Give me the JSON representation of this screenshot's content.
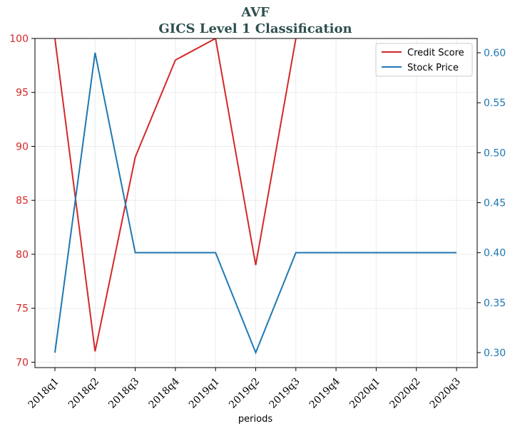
{
  "chart_data": {
    "type": "line",
    "title": "AVF",
    "subtitle": "GICS Level 1 Classification",
    "xlabel": "periods",
    "categories": [
      "2018q1",
      "2018q2",
      "2018q3",
      "2018q4",
      "2019q1",
      "2019q2",
      "2019q3",
      "2019q4",
      "2020q1",
      "2020q2",
      "2020q3"
    ],
    "series": [
      {
        "name": "Credit Score",
        "axis": "left",
        "color": "#d62728",
        "values": [
          100,
          71,
          89,
          98,
          100,
          79,
          100,
          null,
          null,
          null,
          null
        ]
      },
      {
        "name": "Stock Price",
        "axis": "right",
        "color": "#1f77b4",
        "values": [
          0.3,
          0.6,
          0.4,
          0.4,
          0.4,
          0.3,
          0.4,
          0.4,
          0.4,
          0.4,
          0.4
        ]
      }
    ],
    "y_left": {
      "lim": [
        69.5,
        100
      ],
      "ticks": [
        70,
        75,
        80,
        85,
        90,
        95,
        100
      ],
      "tick_labels": [
        "70",
        "75",
        "80",
        "85",
        "90",
        "95",
        "100"
      ],
      "color": "#d62728"
    },
    "y_right": {
      "lim": [
        0.285,
        0.6143
      ],
      "ticks": [
        0.3,
        0.35,
        0.4,
        0.45,
        0.5,
        0.55,
        0.6
      ],
      "tick_labels": [
        "0.30",
        "0.35",
        "0.40",
        "0.45",
        "0.50",
        "0.55",
        "0.60"
      ],
      "color": "#1f77b4"
    },
    "grid": true,
    "legend": "upper-right"
  }
}
